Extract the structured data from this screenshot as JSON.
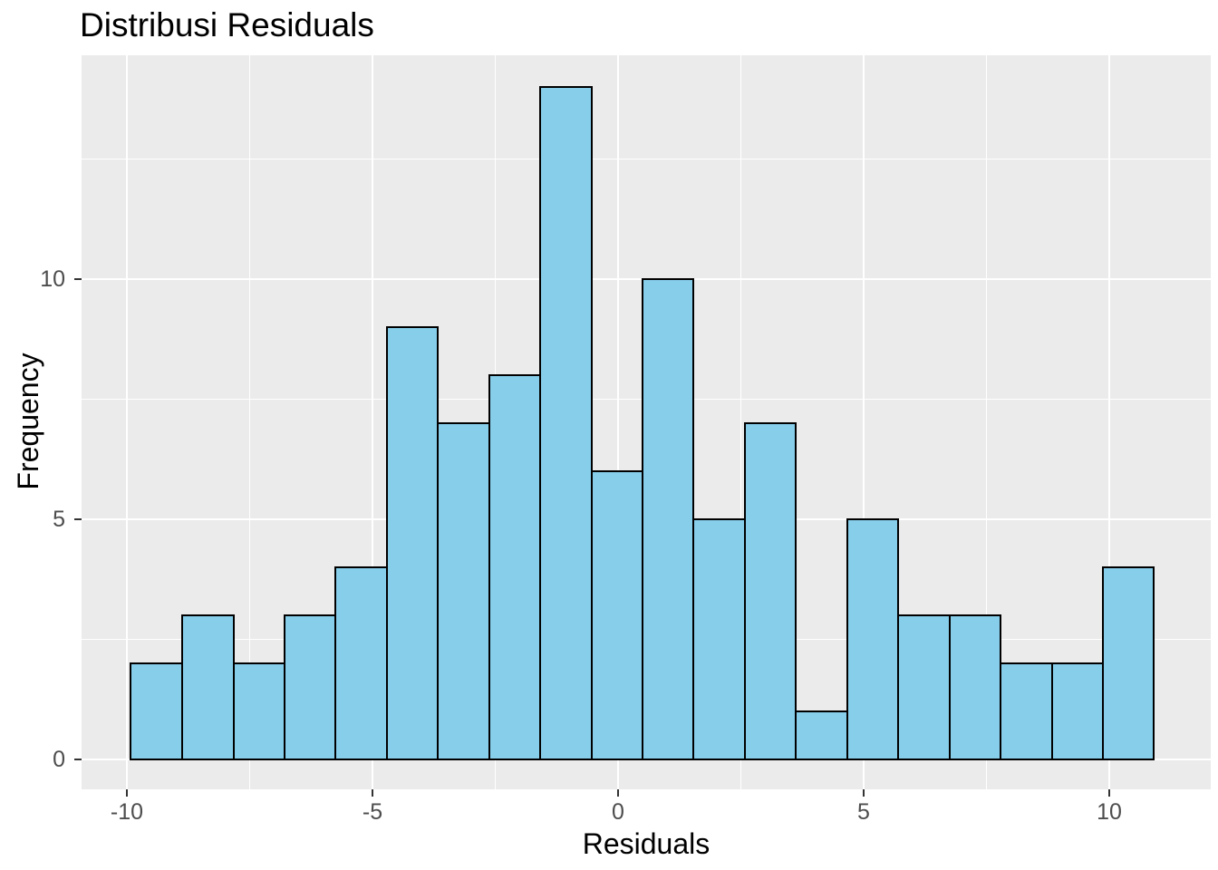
{
  "chart": {
    "title": "Distribusi Residuals",
    "xlabel": "Residuals",
    "ylabel": "Frequency"
  },
  "chart_data": {
    "type": "bar",
    "subtype": "histogram",
    "title": "Distribusi Residuals",
    "xlabel": "Residuals",
    "ylabel": "Frequency",
    "bin_edges": [
      -9.92,
      -8.87,
      -7.83,
      -6.79,
      -5.75,
      -4.71,
      -3.67,
      -2.62,
      -1.58,
      -0.54,
      0.5,
      1.54,
      2.58,
      3.62,
      4.67,
      5.71,
      6.75,
      7.79,
      8.83,
      9.87,
      10.91
    ],
    "counts": [
      2,
      3,
      2,
      3,
      4,
      9,
      7,
      8,
      14,
      6,
      10,
      5,
      7,
      1,
      5,
      3,
      3,
      2,
      2,
      4
    ],
    "total_count": 100,
    "x_ticks": [
      -10,
      -5,
      0,
      5,
      10
    ],
    "x_minor_ticks": [
      -7.5,
      -2.5,
      2.5,
      7.5
    ],
    "y_ticks": [
      0,
      5,
      10
    ],
    "y_minor_ticks": [
      2.5,
      7.5,
      12.5
    ],
    "xlim": [
      -10.9,
      12.1
    ],
    "ylim": [
      -0.6,
      14.7
    ],
    "grid": "on",
    "legend": "none",
    "colors": {
      "bar_fill": "#87CEEB",
      "bar_stroke": "#000000",
      "panel_background": "#EBEBEB",
      "gridline": "#FFFFFF",
      "tick_label": "#4D4D4D",
      "tick_mark": "#333333",
      "title_text": "#000000"
    }
  }
}
